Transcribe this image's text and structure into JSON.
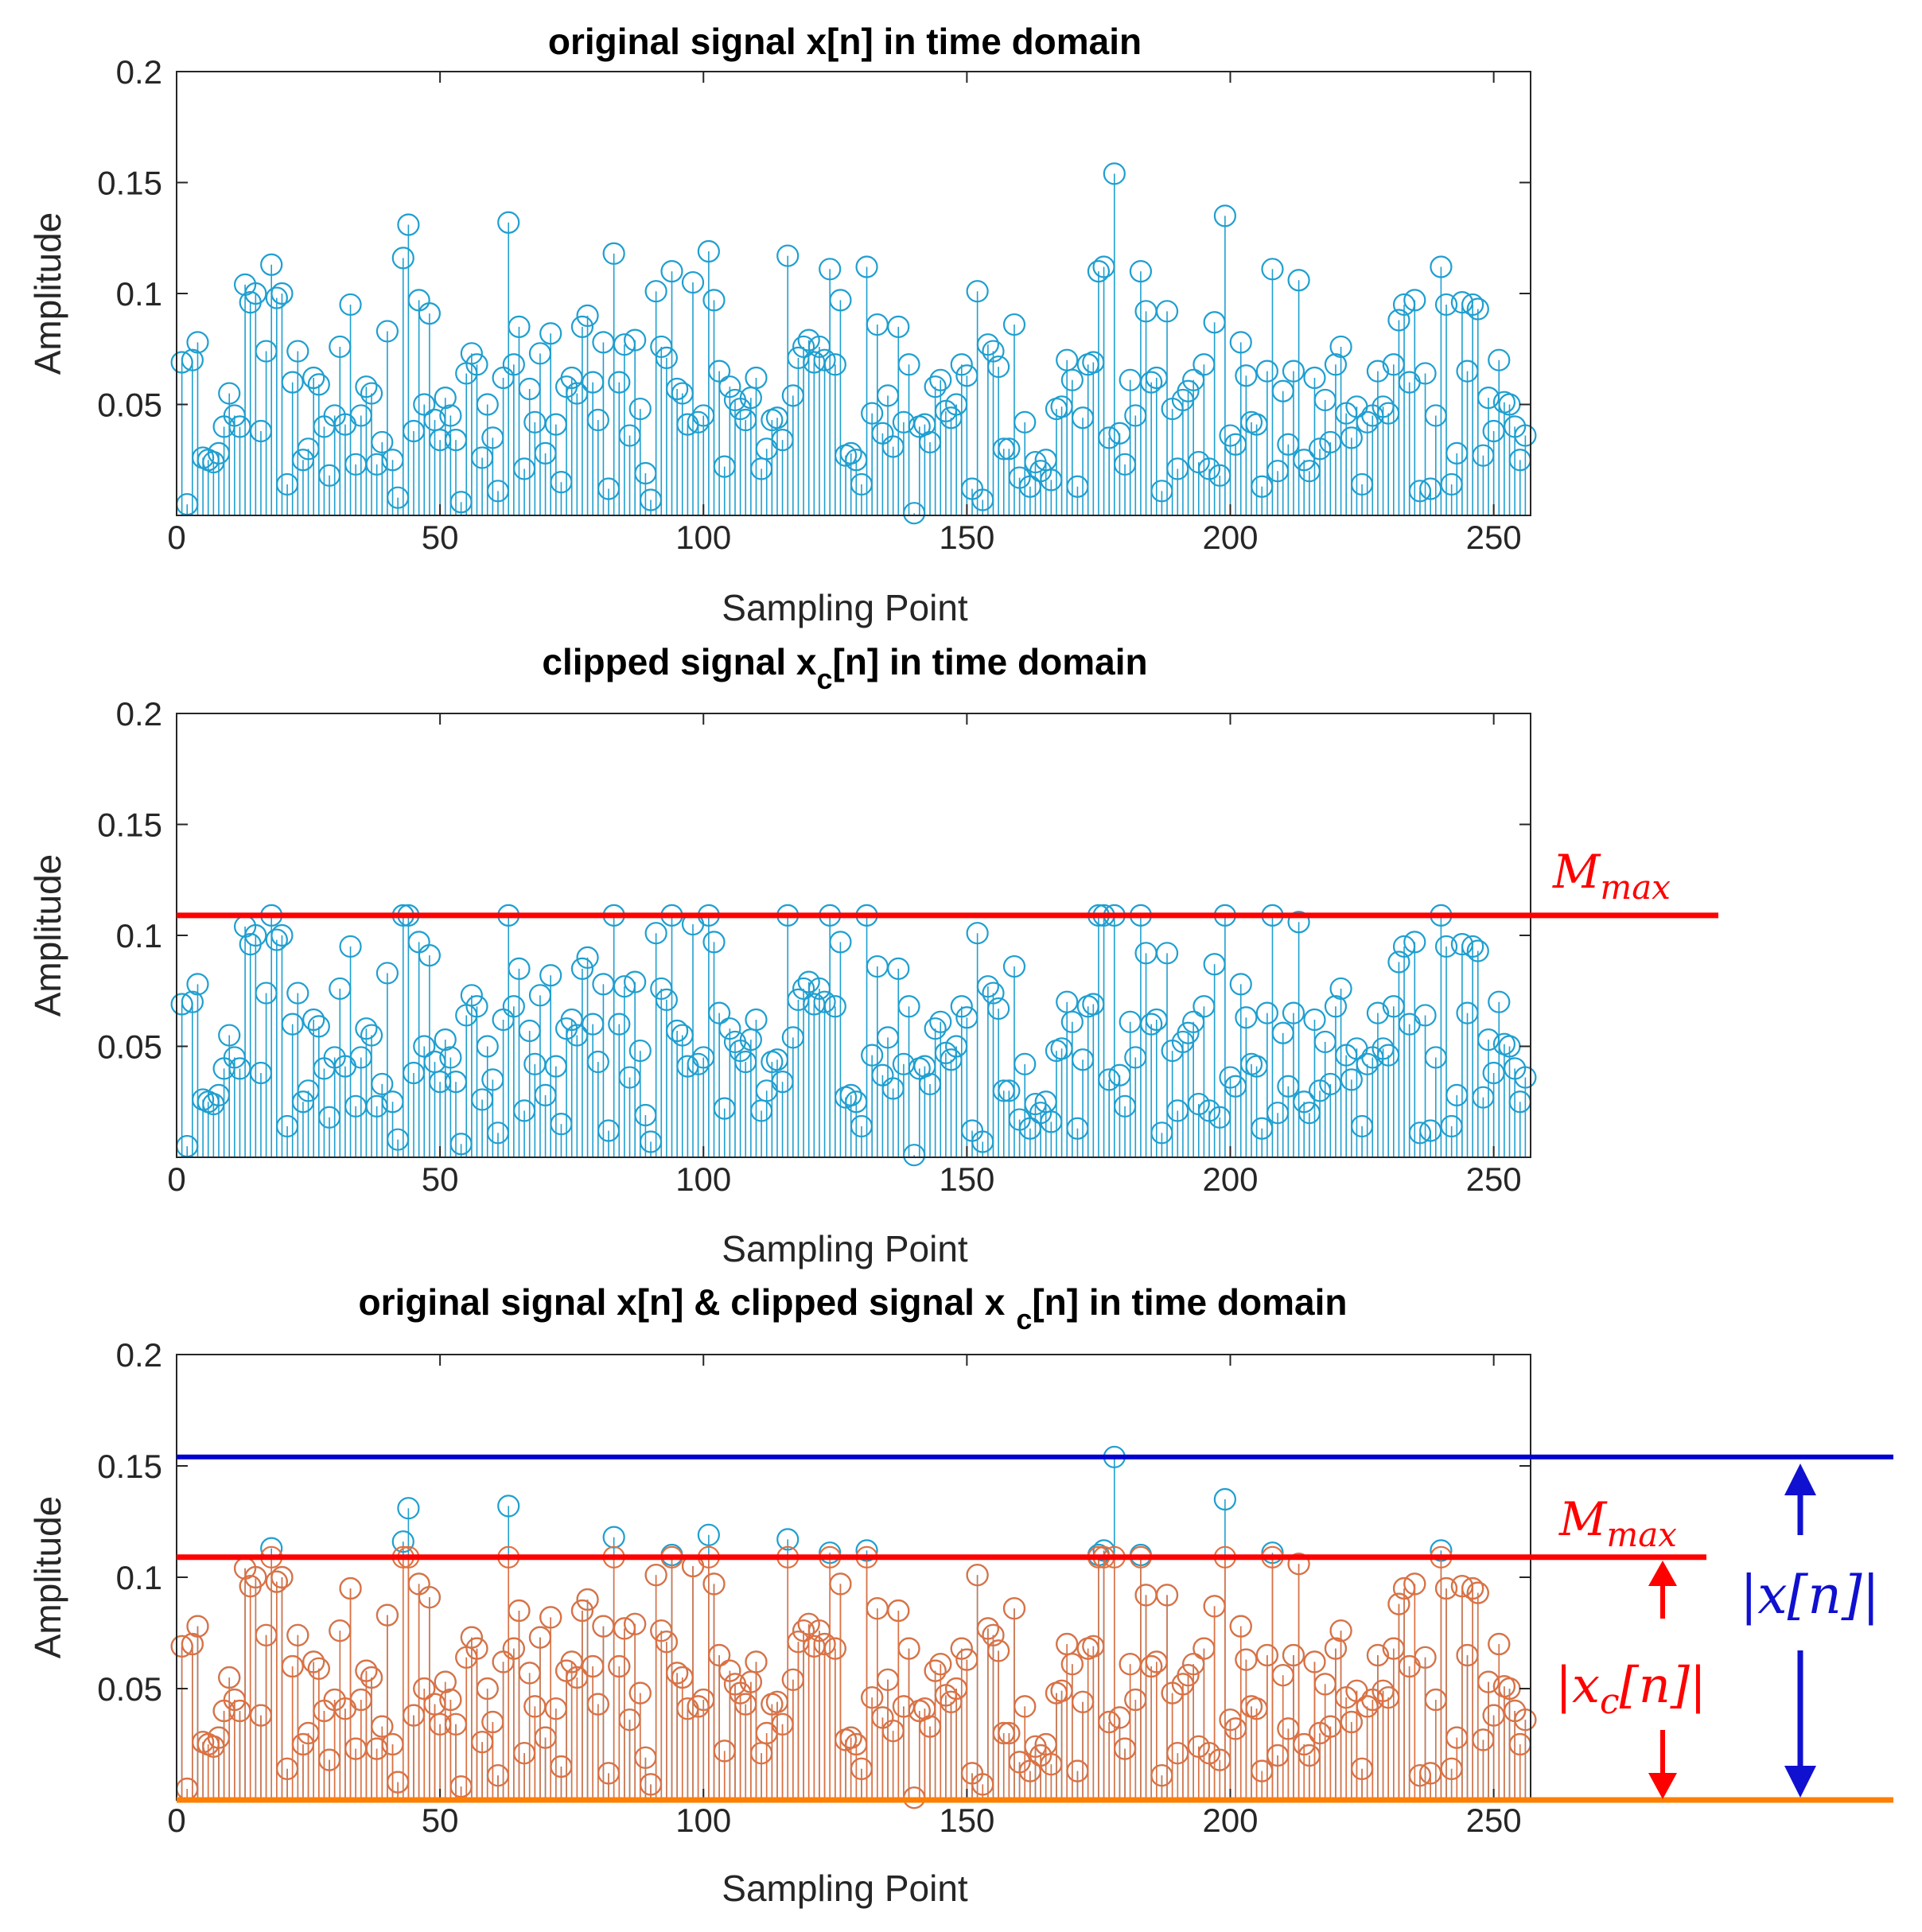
{
  "chart_data": [
    {
      "type": "stem",
      "title": "original signal x[n] in time domain",
      "xlabel": "Sampling Point",
      "ylabel": "Amplitude",
      "xlim": [
        0,
        257
      ],
      "ylim": [
        0,
        0.2
      ],
      "xticks": [
        "0",
        "50",
        "100",
        "150",
        "200",
        "250"
      ],
      "yticks": [
        "0.05",
        "0.1",
        "0.15",
        "0.2"
      ],
      "series": [
        {
          "name": "x[n]",
          "color": "#1f9fd0",
          "source": "original"
        }
      ]
    },
    {
      "type": "stem",
      "title": "clipped signal x",
      "title_sub": "c",
      "title_tail": "[n] in time domain",
      "xlabel": "Sampling Point",
      "ylabel": "Amplitude",
      "xlim": [
        0,
        257
      ],
      "ylim": [
        0,
        0.2
      ],
      "xticks": [
        "0",
        "50",
        "100",
        "150",
        "200",
        "250"
      ],
      "yticks": [
        "0.05",
        "0.1",
        "0.15",
        "0.2"
      ],
      "series": [
        {
          "name": "x_c[n]",
          "color": "#1f9fd0",
          "source": "clipped"
        }
      ],
      "threshold": {
        "label": "M",
        "label_sub": "max",
        "value": 0.109,
        "color": "#ff0000"
      }
    },
    {
      "type": "stem",
      "title": "original signal x[n] & clipped signal x",
      "title_sub": "c",
      "title_tail": "[n] in time domain",
      "xlabel": "Sampling Point",
      "ylabel": "Amplitude",
      "xlim": [
        0,
        257
      ],
      "ylim": [
        0,
        0.2
      ],
      "xticks": [
        "0",
        "50",
        "100",
        "150",
        "200",
        "250"
      ],
      "yticks": [
        "0.05",
        "0.1",
        "0.15",
        "0.2"
      ],
      "series": [
        {
          "name": "x[n]",
          "color": "#1f9fd0",
          "source": "original"
        },
        {
          "name": "x_c[n]",
          "color": "#e07040",
          "source": "clipped"
        }
      ],
      "threshold": {
        "label": "M",
        "label_sub": "max",
        "value": 0.109,
        "color": "#ff0000"
      },
      "peak_line": {
        "value": 0.154,
        "color": "#0000d0"
      },
      "baseline_color": "#ff7f00",
      "annotations": {
        "xc_label": "|x",
        "xc_sub": "c",
        "xc_tail": "[n]|",
        "x_label": "|x[n]|"
      }
    }
  ],
  "signal": {
    "clip_level": 0.109,
    "values": [
      0.069,
      0.005,
      0.07,
      0.078,
      0.026,
      0.025,
      0.024,
      0.028,
      0.04,
      0.055,
      0.045,
      0.04,
      0.104,
      0.096,
      0.1,
      0.038,
      0.074,
      0.113,
      0.098,
      0.1,
      0.014,
      0.06,
      0.074,
      0.025,
      0.03,
      0.062,
      0.059,
      0.04,
      0.018,
      0.045,
      0.076,
      0.041,
      0.095,
      0.023,
      0.045,
      0.058,
      0.055,
      0.023,
      0.033,
      0.083,
      0.025,
      0.008,
      0.116,
      0.131,
      0.038,
      0.097,
      0.05,
      0.091,
      0.043,
      0.034,
      0.053,
      0.045,
      0.034,
      0.006,
      0.064,
      0.073,
      0.068,
      0.026,
      0.05,
      0.035,
      0.011,
      0.062,
      0.132,
      0.068,
      0.085,
      0.021,
      0.057,
      0.042,
      0.073,
      0.028,
      0.082,
      0.041,
      0.015,
      0.058,
      0.062,
      0.055,
      0.085,
      0.09,
      0.06,
      0.043,
      0.078,
      0.012,
      0.118,
      0.06,
      0.077,
      0.036,
      0.079,
      0.048,
      0.019,
      0.007,
      0.101,
      0.076,
      0.071,
      0.11,
      0.057,
      0.055,
      0.041,
      0.105,
      0.042,
      0.045,
      0.119,
      0.097,
      0.065,
      0.022,
      0.058,
      0.052,
      0.048,
      0.043,
      0.053,
      0.062,
      0.021,
      0.03,
      0.043,
      0.044,
      0.034,
      0.117,
      0.054,
      0.071,
      0.076,
      0.079,
      0.069,
      0.076,
      0.07,
      0.111,
      0.068,
      0.097,
      0.027,
      0.028,
      0.025,
      0.014,
      0.112,
      0.046,
      0.086,
      0.037,
      0.054,
      0.031,
      0.085,
      0.042,
      0.068,
      0.001,
      0.04,
      0.041,
      0.033,
      0.058,
      0.061,
      0.047,
      0.044,
      0.05,
      0.068,
      0.063,
      0.012,
      0.101,
      0.007,
      0.077,
      0.074,
      0.067,
      0.03,
      0.03,
      0.086,
      0.017,
      0.042,
      0.013,
      0.024,
      0.02,
      0.025,
      0.016,
      0.048,
      0.049,
      0.07,
      0.061,
      0.013,
      0.044,
      0.068,
      0.069,
      0.11,
      0.112,
      0.035,
      0.154,
      0.037,
      0.023,
      0.061,
      0.045,
      0.11,
      0.092,
      0.06,
      0.062,
      0.011,
      0.092,
      0.048,
      0.021,
      0.052,
      0.056,
      0.061,
      0.024,
      0.068,
      0.021,
      0.087,
      0.018,
      0.135,
      0.036,
      0.032,
      0.078,
      0.063,
      0.042,
      0.041,
      0.013,
      0.065,
      0.111,
      0.02,
      0.056,
      0.032,
      0.065,
      0.106,
      0.025,
      0.02,
      0.062,
      0.03,
      0.052,
      0.033,
      0.068,
      0.076,
      0.046,
      0.035,
      0.049,
      0.014,
      0.042,
      0.045,
      0.065,
      0.049,
      0.046,
      0.068,
      0.088,
      0.095,
      0.06,
      0.097,
      0.011,
      0.064,
      0.012,
      0.045,
      0.112,
      0.095,
      0.014,
      0.028,
      0.096,
      0.065,
      0.095,
      0.093,
      0.027,
      0.053,
      0.038,
      0.07,
      0.051,
      0.05,
      0.04,
      0.025,
      0.036
    ]
  }
}
